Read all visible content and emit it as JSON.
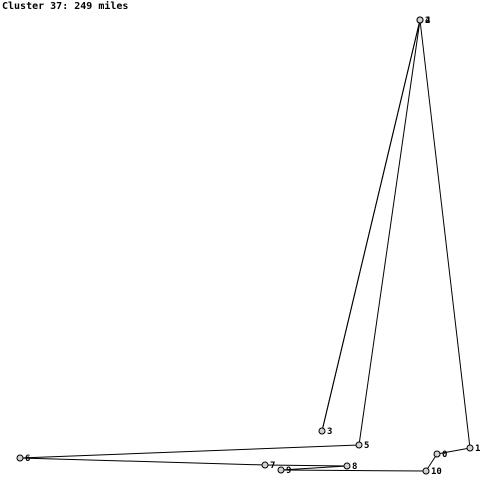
{
  "title": "Cluster 37: 249 miles",
  "colors": {
    "background": "#ffffff",
    "line": "#000000",
    "node_fill": "#d3d3d3",
    "node_stroke": "#000000",
    "text": "#000000"
  },
  "nodes": [
    {
      "id": "0",
      "label": "0"
    },
    {
      "id": "1",
      "label": "1"
    },
    {
      "id": "2",
      "label": "2"
    },
    {
      "id": "3",
      "label": "3"
    },
    {
      "id": "4",
      "label": "4"
    },
    {
      "id": "5",
      "label": "5"
    },
    {
      "id": "6",
      "label": "6"
    },
    {
      "id": "7",
      "label": "7"
    },
    {
      "id": "8",
      "label": "8"
    },
    {
      "id": "9",
      "label": "9"
    },
    {
      "id": "10",
      "label": "10"
    }
  ],
  "route": [
    "1",
    "0",
    "10",
    "9",
    "8",
    "7",
    "6",
    "5",
    "4",
    "3",
    "2",
    "1"
  ]
}
